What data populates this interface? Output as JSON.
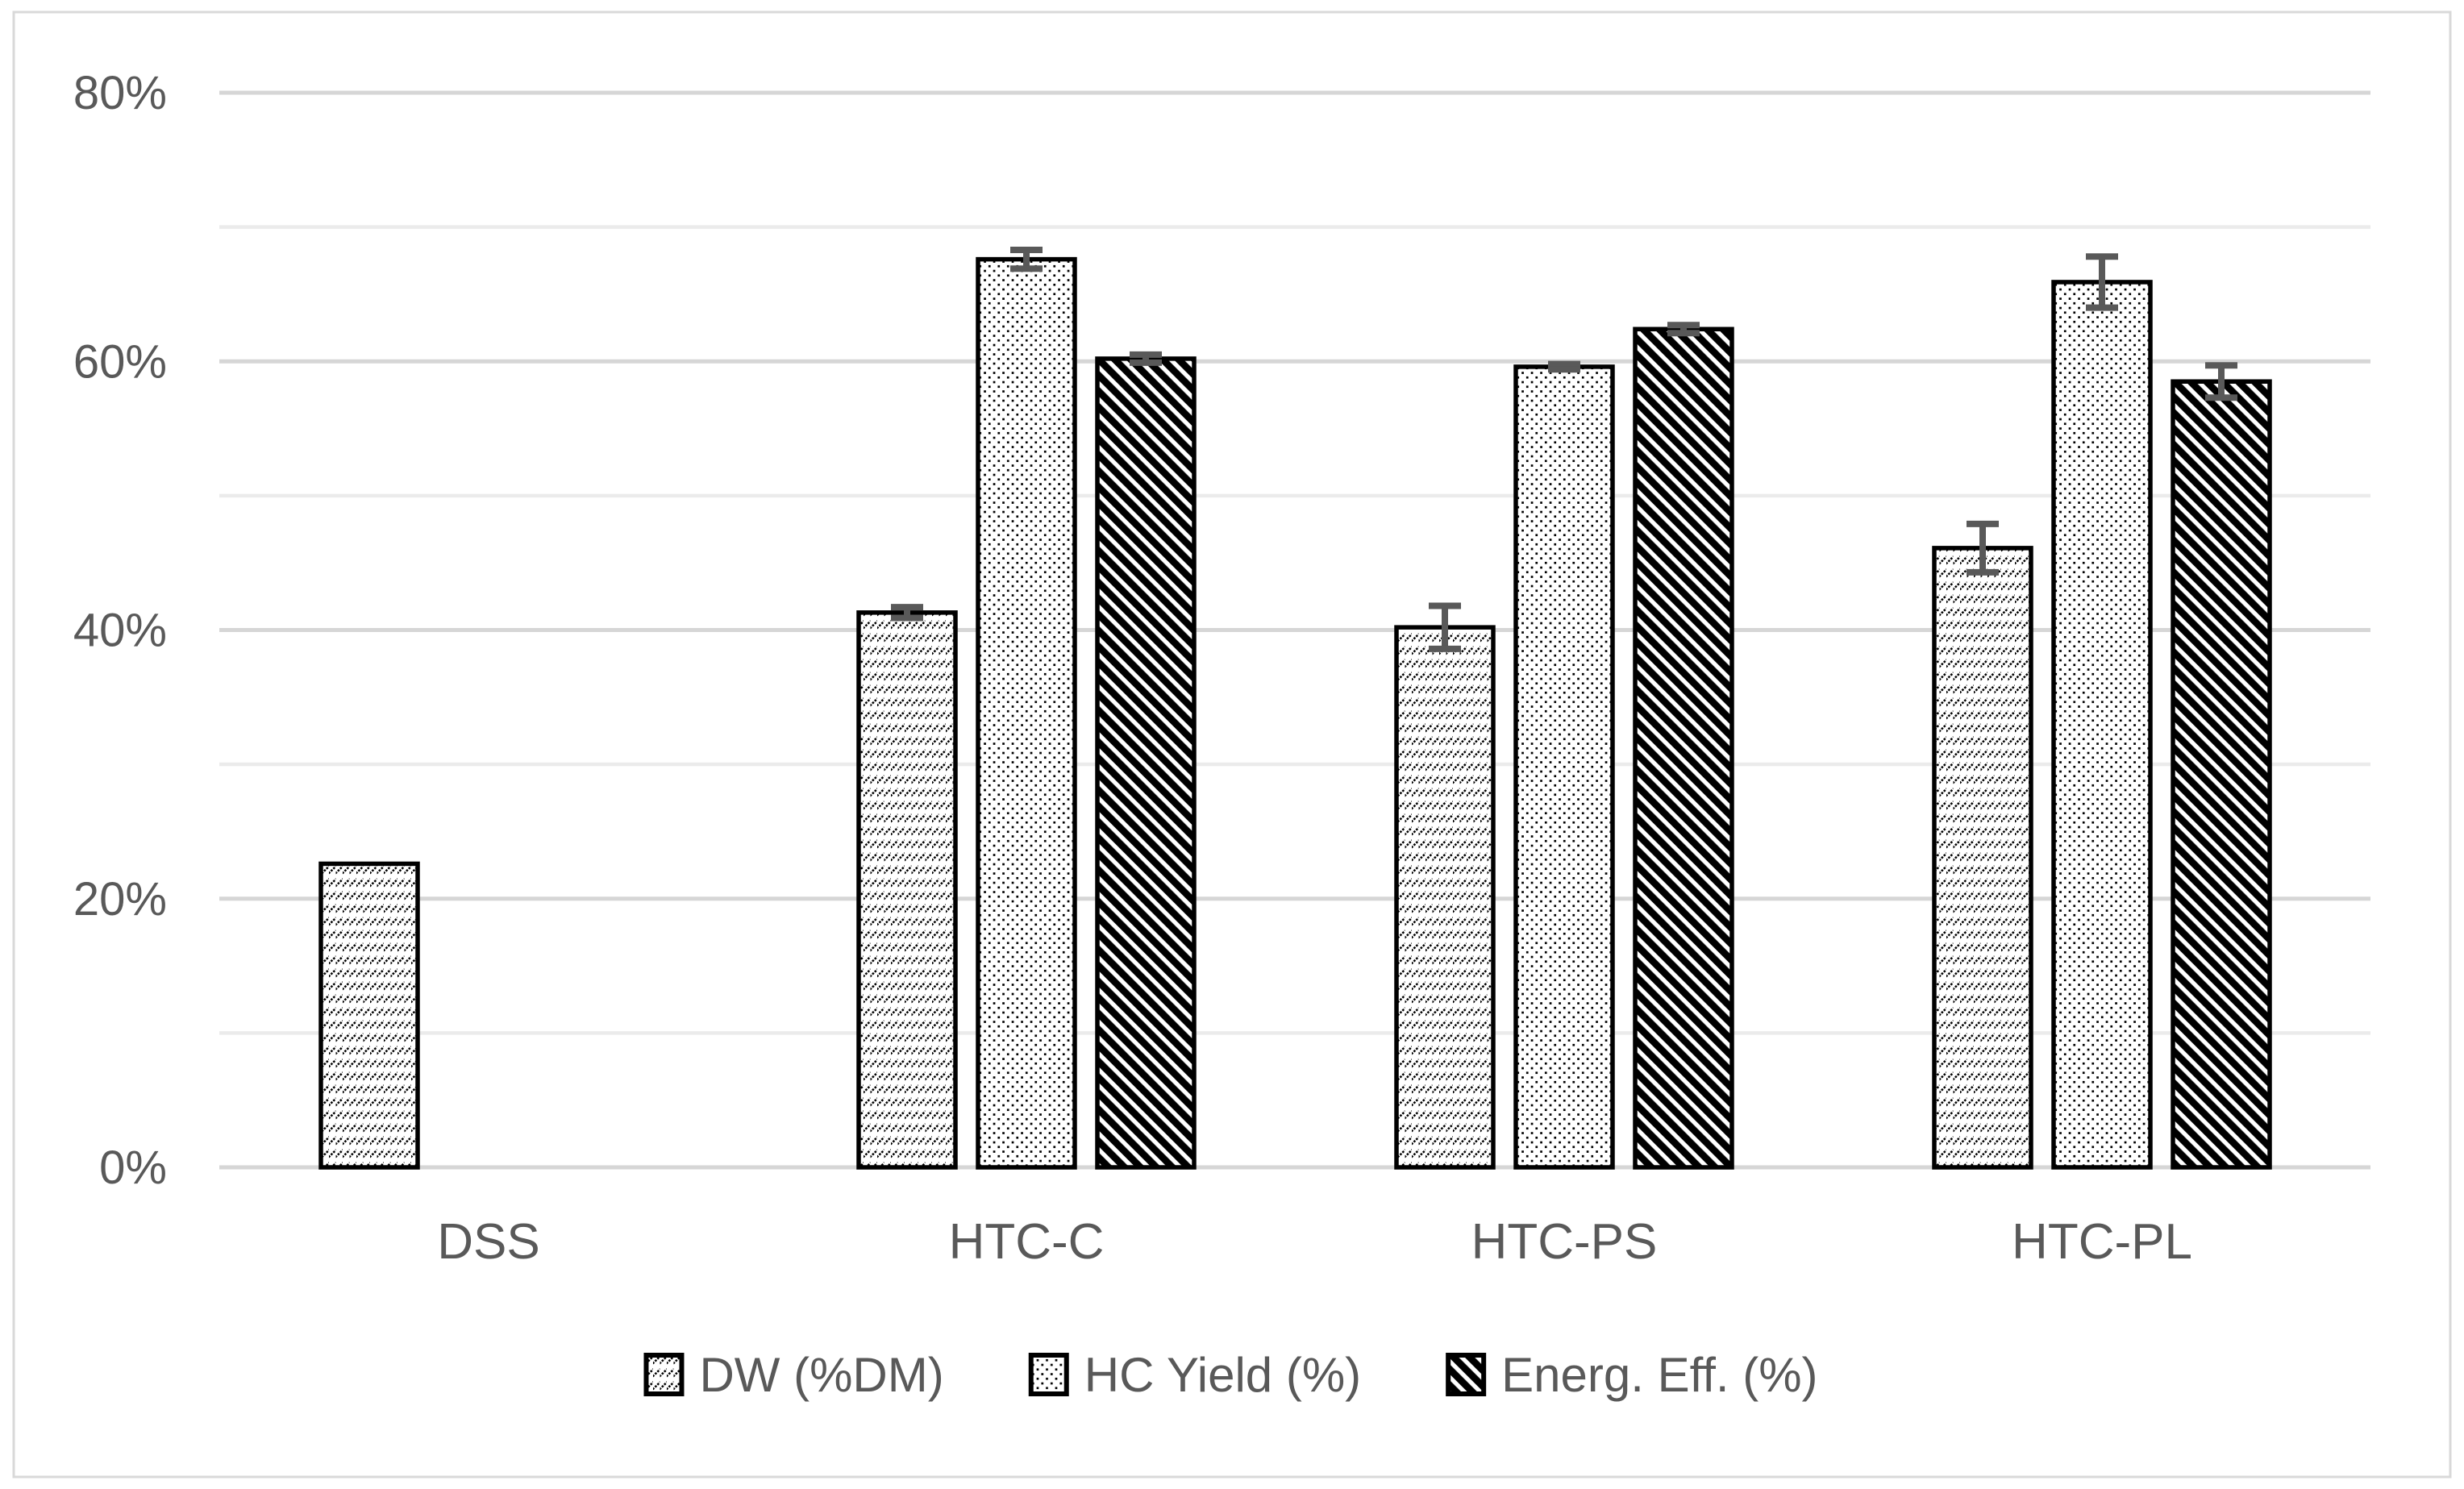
{
  "chart_data": {
    "type": "bar",
    "title": "",
    "categories": [
      "DSS",
      "HTC-C",
      "HTC-PS",
      "HTC-PL"
    ],
    "series": [
      {
        "name": "DW (%DM)",
        "pattern": "diag-dash-up",
        "values": [
          22.6,
          41.3,
          40.2,
          46.1
        ],
        "errors": [
          0,
          0.4,
          1.6,
          1.8
        ]
      },
      {
        "name": "HC Yield (%)",
        "pattern": "dots",
        "values": [
          null,
          67.6,
          59.6,
          65.9
        ],
        "errors": [
          null,
          0.7,
          0.2,
          1.9
        ]
      },
      {
        "name": "Energ. Eff. (%)",
        "pattern": "diag-wide-down",
        "values": [
          null,
          60.2,
          62.4,
          58.5
        ],
        "errors": [
          null,
          0.3,
          0.3,
          1.2
        ]
      }
    ],
    "y_axis": {
      "min": 0,
      "max": 80,
      "major_step": 20,
      "minor_step": 10,
      "tick_labels": [
        "0%",
        "20%",
        "40%",
        "60%",
        "80%"
      ],
      "format": "percent"
    },
    "legend": {
      "position": "bottom",
      "entries": [
        "DW (%DM)",
        "HC Yield (%)",
        "Energ. Eff. (%)"
      ]
    },
    "grid": true,
    "colors": {
      "text": "#595959",
      "bar_border": "#000000",
      "pattern_ink": "#000000",
      "bar_fill": "#ffffff",
      "error_bar": "#595959",
      "gridline_major": "#d6d6d6",
      "gridline_minor": "#ebebeb",
      "frame_border": "#d9d9d9",
      "background": "#ffffff"
    }
  }
}
